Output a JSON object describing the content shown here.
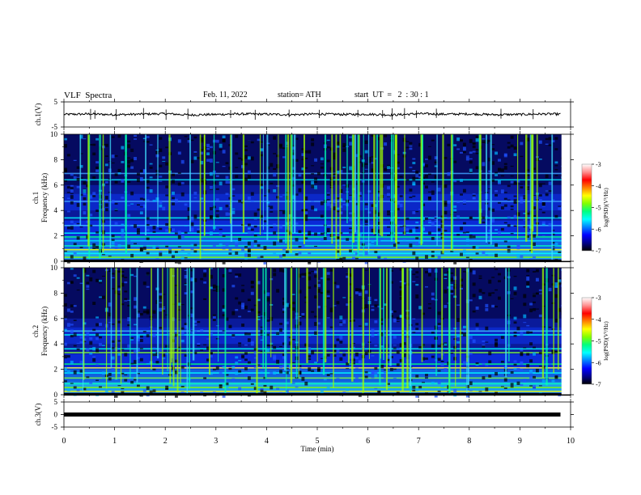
{
  "header": {
    "title": "VLF  Spectra",
    "date": "Feb. 11, 2022",
    "station": "station= ATH",
    "start": "start  UT  =   2  : 30 : 1"
  },
  "chart_data": [
    {
      "type": "line",
      "panel": "ch1-waveform",
      "ylabel": "ch.1(V)",
      "ylim": [
        -5,
        5
      ],
      "yticks": [
        5,
        -5
      ],
      "xlim": [
        0,
        10
      ],
      "x": [
        0,
        0.5,
        1,
        1.5,
        2,
        2.5,
        3,
        3.5,
        4,
        4.5,
        5,
        5.5,
        6,
        6.5,
        7,
        7.5,
        8,
        8.5,
        9,
        9.5,
        9.8
      ],
      "y": [
        0,
        0.2,
        -0.1,
        0.1,
        0.3,
        -0.2,
        0,
        0.2,
        0.1,
        -0.1,
        0.2,
        0,
        0.1,
        -0.2,
        0.3,
        0.1,
        0.2,
        -0.1,
        0,
        0.2,
        0.1
      ]
    },
    {
      "type": "heatmap",
      "panel": "ch1-spectrogram",
      "ylabel": "ch.1\nFrequency  (kHz)",
      "ylim": [
        0,
        10
      ],
      "yticks": [
        0,
        2,
        4,
        6,
        8,
        10
      ],
      "xlim": [
        0,
        10
      ],
      "colorbar": {
        "label": "log(PSD)(V²/Hz)",
        "ticks": [
          -3,
          -4,
          -5,
          -6,
          -7
        ]
      }
    },
    {
      "type": "heatmap",
      "panel": "ch2-spectrogram",
      "ylabel": "ch.2\nFrequency  (kHz)",
      "ylim": [
        0,
        10
      ],
      "yticks": [
        0,
        2,
        4,
        6,
        8,
        10
      ],
      "xlim": [
        0,
        10
      ],
      "colorbar": {
        "label": "log(PSD)(V²/Hz)",
        "ticks": [
          -3,
          -4,
          -5,
          -6,
          -7
        ]
      }
    },
    {
      "type": "line",
      "panel": "ch3-waveform",
      "ylabel": "ch.3(V)",
      "ylim": [
        -5,
        5
      ],
      "yticks": [
        5,
        0,
        -5
      ],
      "xlim": [
        0,
        10
      ],
      "x": [
        0,
        9.8
      ],
      "y": [
        0,
        0
      ]
    }
  ],
  "xaxis": {
    "label": "Time  (min)",
    "ticks": [
      0,
      1,
      2,
      3,
      4,
      5,
      6,
      7,
      8,
      9,
      10
    ]
  },
  "colormap": [
    "#000000",
    "#000080",
    "#0000ff",
    "#0080ff",
    "#00ffff",
    "#00ff80",
    "#80ff00",
    "#ffff00",
    "#ff8000",
    "#ff0000",
    "#ff8080",
    "#ffffff"
  ]
}
